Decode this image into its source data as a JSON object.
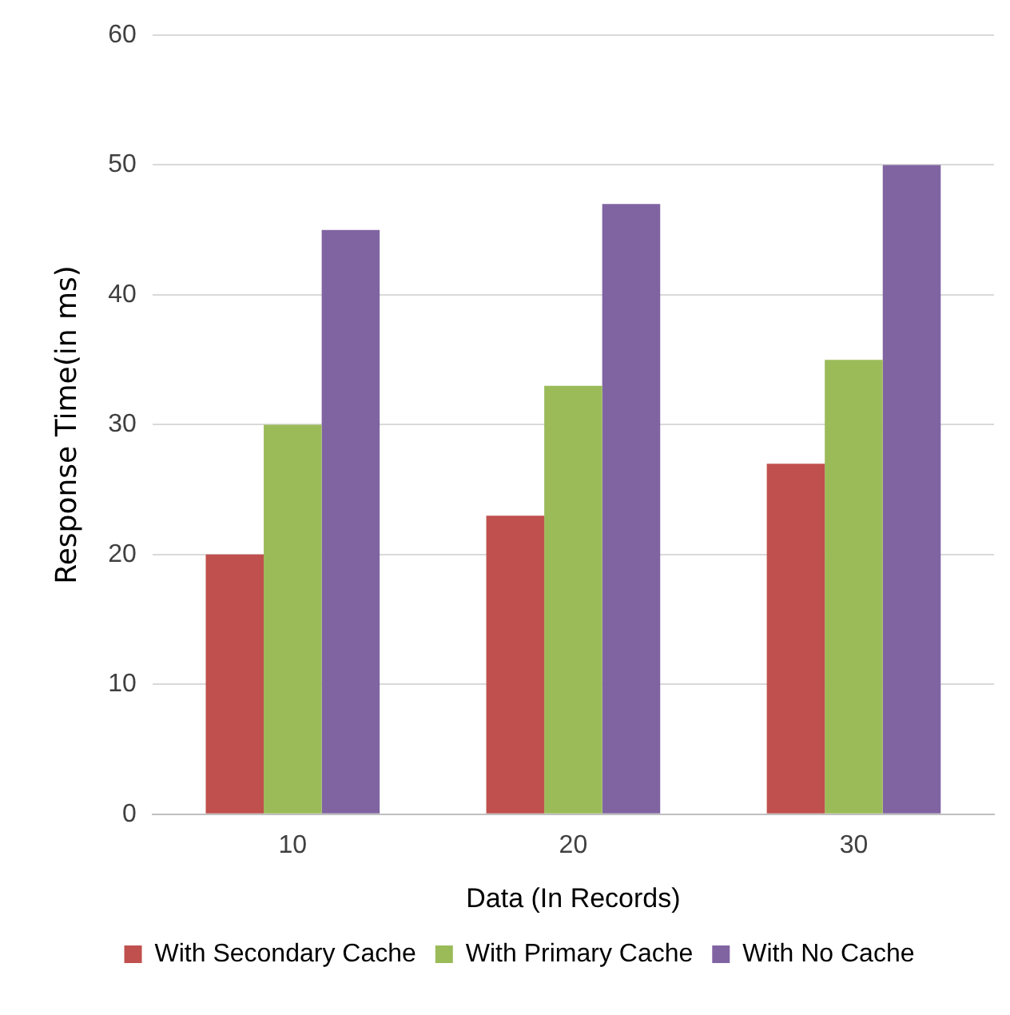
{
  "chart_data": {
    "type": "bar",
    "xlabel": "Data (In Records)",
    "ylabel": "Response Time(in ms)",
    "categories": [
      "10",
      "20",
      "30"
    ],
    "series": [
      {
        "name": "With Secondary Cache",
        "color": "#c0504d",
        "values": [
          20,
          23,
          27
        ]
      },
      {
        "name": "With Primary Cache",
        "color": "#9bbb59",
        "values": [
          30,
          33,
          35
        ]
      },
      {
        "name": "With No Cache",
        "color": "#8064a2",
        "values": [
          45,
          47,
          50
        ]
      }
    ],
    "ylim": [
      0,
      60
    ],
    "yticks": [
      0,
      10,
      20,
      30,
      40,
      50,
      60
    ],
    "grid": "y",
    "legend": "bottom"
  }
}
